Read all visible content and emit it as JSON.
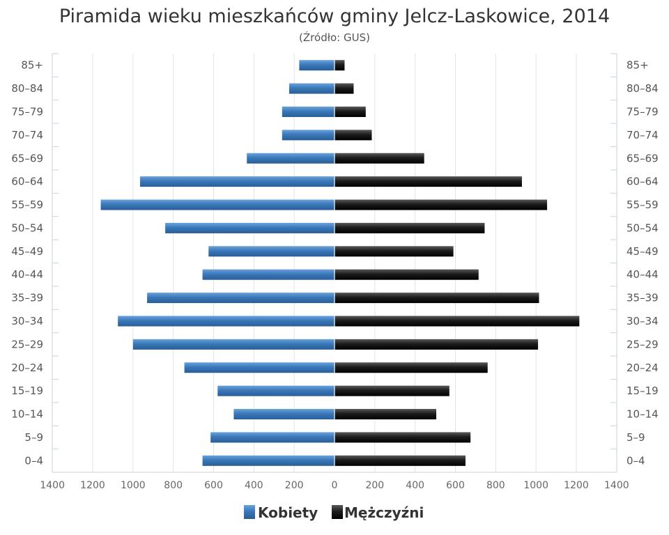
{
  "chart_data": {
    "type": "bar",
    "orientation": "horizontal",
    "layout": "population-pyramid",
    "title": "Piramida wieku mieszkańców gminy Jelcz-Laskowice, 2014",
    "subtitle": "(Źródło: GUS)",
    "categories": [
      "0-4",
      "5-9",
      "10-14",
      "15-19",
      "20-24",
      "25-29",
      "30-34",
      "35-39",
      "40-44",
      "45-49",
      "50-54",
      "55-59",
      "60-64",
      "65-69",
      "70-74",
      "75-79",
      "80-84",
      "85+"
    ],
    "series": [
      {
        "name": "Kobiety",
        "side": "left",
        "color": "#3b77b8",
        "values": [
          655,
          615,
          500,
          580,
          745,
          1000,
          1075,
          930,
          655,
          625,
          840,
          1160,
          965,
          435,
          260,
          260,
          225,
          175
        ]
      },
      {
        "name": "Mężczyźni",
        "side": "right",
        "color": "#1a1a1a",
        "values": [
          650,
          675,
          505,
          570,
          760,
          1010,
          1215,
          1015,
          715,
          590,
          745,
          1055,
          930,
          445,
          185,
          155,
          95,
          50
        ]
      }
    ],
    "xlim": [
      -1400,
      1400
    ],
    "x_ticks": [
      1400,
      1200,
      1000,
      800,
      600,
      400,
      200,
      0,
      200,
      400,
      600,
      800,
      1000,
      1200,
      1400
    ],
    "grid": true,
    "legend_position": "bottom"
  }
}
